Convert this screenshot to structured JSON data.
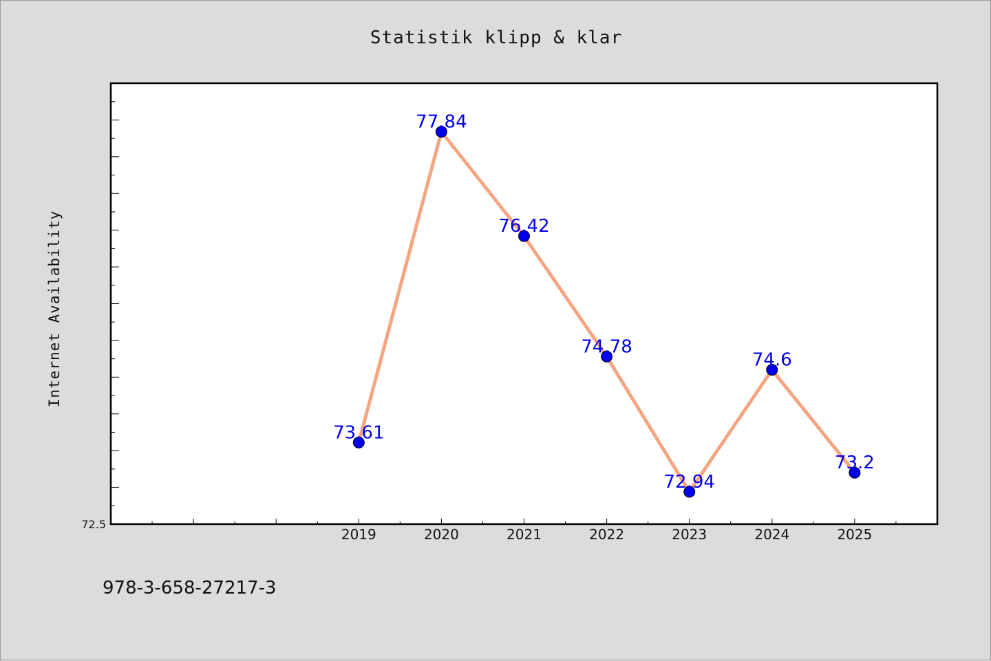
{
  "chart_data": {
    "type": "line",
    "title": "Statistik klipp & klar",
    "xlabel": "",
    "ylabel": "Internet Availability",
    "categories": [
      "2019",
      "2020",
      "2021",
      "2022",
      "2023",
      "2024",
      "2025"
    ],
    "series": [
      {
        "values": [
          73.61,
          77.84,
          76.42,
          74.78,
          72.94,
          74.6,
          73.2
        ],
        "labels": [
          "73.61",
          "77.84",
          "76.42",
          "74.78",
          "72.94",
          "74.6",
          "73.2"
        ]
      }
    ],
    "x_axis": {
      "range": [
        2016,
        2026
      ]
    },
    "ylim": [
      72.5,
      78.5
    ],
    "ytick_labels": [
      "72.5"
    ],
    "line_color": "#f4a582",
    "marker_color": "#0000ee",
    "label_color": "#0000ee",
    "grid": false,
    "legend": "none"
  },
  "footnote": "978-3-658-27217-3"
}
